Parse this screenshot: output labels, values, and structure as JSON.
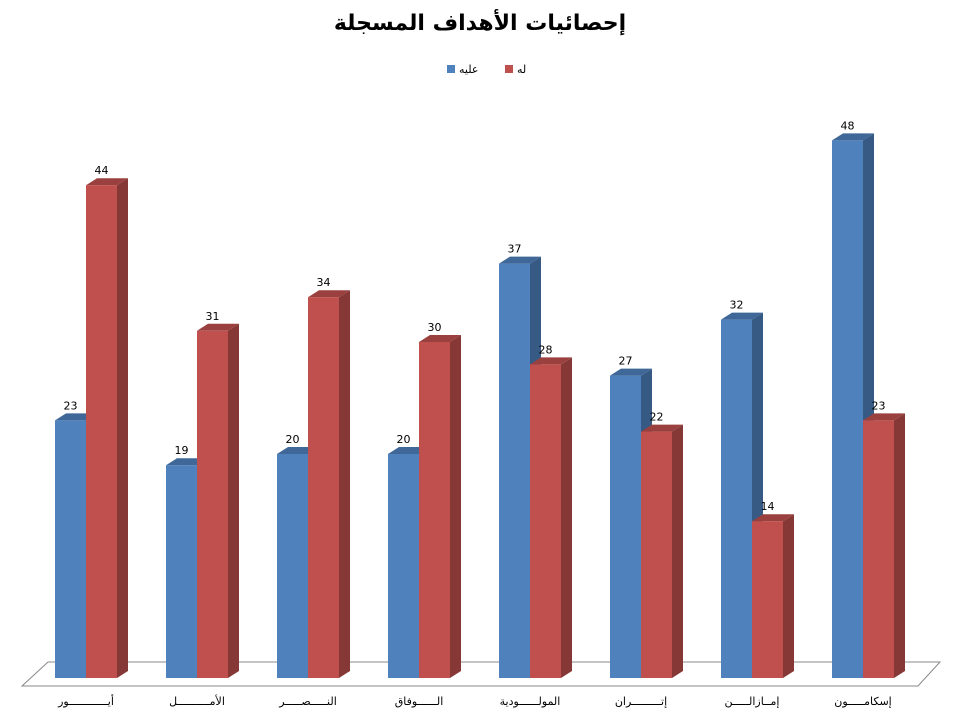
{
  "chart_data": {
    "type": "bar",
    "title": "إحصائيات الأهداف المسجلة",
    "categories": [
      "أيــــــــــــور",
      "الأمــــــــــل",
      "النـــــصـــــر",
      "الــــــوفاق",
      "المولــــــودية",
      "إتـــــــــران",
      "إمــازالـــــن",
      "إسكامـــــون"
    ],
    "series": [
      {
        "name": "عليه",
        "color": "#4F81BD",
        "values": [
          23,
          19,
          20,
          20,
          37,
          27,
          32,
          48
        ]
      },
      {
        "name": "له",
        "color": "#C0504D",
        "values": [
          44,
          31,
          34,
          30,
          28,
          22,
          14,
          23
        ]
      }
    ]
  }
}
